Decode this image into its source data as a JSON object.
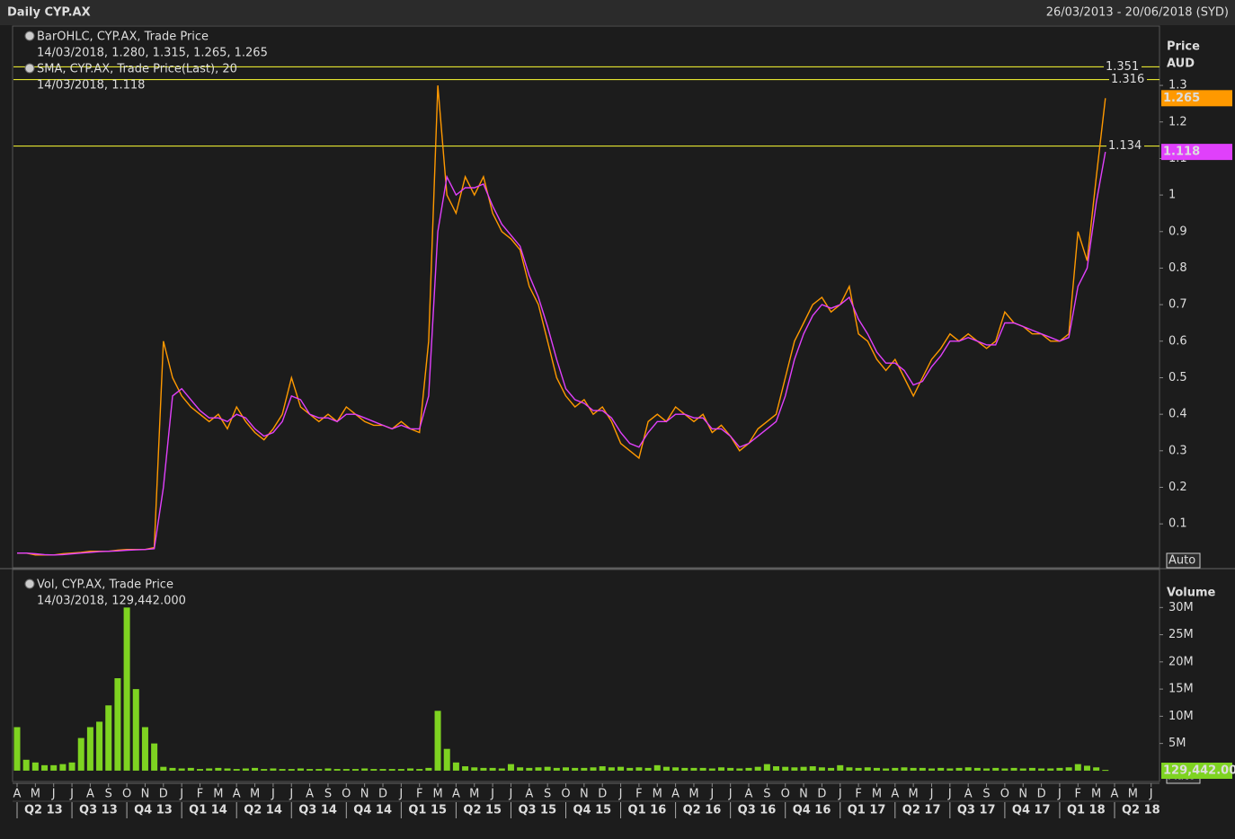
{
  "header": {
    "title": "Daily CYP.AX",
    "date_range": "26/03/2013 - 20/06/2018 (SYD)"
  },
  "x_axis": {
    "months": [
      "A",
      "M",
      "J",
      "J",
      "A",
      "S",
      "O",
      "N",
      "D",
      "J",
      "F",
      "M",
      "A",
      "M",
      "J",
      "J",
      "A",
      "S",
      "O",
      "N",
      "D",
      "J",
      "F",
      "M",
      "A",
      "M",
      "J",
      "J",
      "A",
      "S",
      "O",
      "N",
      "D",
      "J",
      "F",
      "M",
      "A",
      "M",
      "J",
      "J",
      "A",
      "S",
      "O",
      "N",
      "D",
      "J",
      "F",
      "M",
      "A",
      "M",
      "J",
      "J",
      "A",
      "S",
      "O",
      "N",
      "D",
      "J",
      "F",
      "M",
      "A",
      "M",
      "J"
    ],
    "quarters": [
      "Q2 13",
      "Q3 13",
      "Q4 13",
      "Q1 14",
      "Q2 14",
      "Q3 14",
      "Q4 14",
      "Q1 15",
      "Q2 15",
      "Q3 15",
      "Q4 15",
      "Q1 16",
      "Q2 16",
      "Q3 16",
      "Q4 16",
      "Q1 17",
      "Q2 17",
      "Q3 17",
      "Q4 17",
      "Q1 18",
      "Q2 18"
    ]
  },
  "chart_data": [
    {
      "type": "line",
      "axis_title": "Price",
      "axis_unit": "AUD",
      "autoscale": "Auto",
      "ylim": [
        -0.02,
        1.46
      ],
      "yticks": [
        0.1,
        0.2,
        0.3,
        0.4,
        0.5,
        0.6,
        0.7,
        0.8,
        0.9,
        1,
        1.1,
        1.2,
        1.3
      ],
      "levels": [
        1.351,
        1.316,
        1.134
      ],
      "level_color": "#ffff33",
      "series": [
        {
          "name": "BarOHLC, CYP.AX, Trade Price",
          "detail": "14/03/2018, 1.280, 1.315, 1.265, 1.265",
          "color": "#ff9900",
          "values": [
            0.02,
            0.02,
            0.015,
            0.015,
            0.015,
            0.018,
            0.02,
            0.022,
            0.025,
            0.025,
            0.025,
            0.028,
            0.03,
            0.03,
            0.03,
            0.035,
            0.6,
            0.5,
            0.45,
            0.42,
            0.4,
            0.38,
            0.4,
            0.36,
            0.42,
            0.38,
            0.35,
            0.33,
            0.36,
            0.4,
            0.5,
            0.42,
            0.4,
            0.38,
            0.4,
            0.38,
            0.42,
            0.4,
            0.38,
            0.37,
            0.37,
            0.36,
            0.38,
            0.36,
            0.35,
            0.6,
            1.3,
            1.0,
            0.95,
            1.05,
            1.0,
            1.05,
            0.95,
            0.9,
            0.88,
            0.85,
            0.75,
            0.7,
            0.6,
            0.5,
            0.45,
            0.42,
            0.44,
            0.4,
            0.42,
            0.38,
            0.32,
            0.3,
            0.28,
            0.38,
            0.4,
            0.38,
            0.42,
            0.4,
            0.38,
            0.4,
            0.35,
            0.37,
            0.34,
            0.3,
            0.32,
            0.36,
            0.38,
            0.4,
            0.5,
            0.6,
            0.65,
            0.7,
            0.72,
            0.68,
            0.7,
            0.75,
            0.62,
            0.6,
            0.55,
            0.52,
            0.55,
            0.5,
            0.45,
            0.5,
            0.55,
            0.58,
            0.62,
            0.6,
            0.62,
            0.6,
            0.58,
            0.6,
            0.68,
            0.65,
            0.64,
            0.62,
            0.62,
            0.6,
            0.6,
            0.62,
            0.9,
            0.82,
            1.05,
            1.265
          ]
        },
        {
          "name": "SMA, CYP.AX, Trade Price(Last),  20",
          "detail": "14/03/2018, 1.118",
          "color": "#e040fb",
          "values": [
            0.02,
            0.02,
            0.018,
            0.016,
            0.015,
            0.016,
            0.018,
            0.02,
            0.022,
            0.024,
            0.025,
            0.026,
            0.028,
            0.029,
            0.03,
            0.032,
            0.2,
            0.45,
            0.47,
            0.44,
            0.41,
            0.39,
            0.39,
            0.38,
            0.4,
            0.39,
            0.36,
            0.34,
            0.35,
            0.38,
            0.45,
            0.44,
            0.4,
            0.39,
            0.39,
            0.38,
            0.4,
            0.4,
            0.39,
            0.38,
            0.37,
            0.36,
            0.37,
            0.36,
            0.36,
            0.45,
            0.9,
            1.05,
            1.0,
            1.02,
            1.02,
            1.03,
            0.97,
            0.92,
            0.89,
            0.86,
            0.78,
            0.72,
            0.64,
            0.55,
            0.47,
            0.44,
            0.43,
            0.41,
            0.41,
            0.39,
            0.35,
            0.32,
            0.31,
            0.35,
            0.38,
            0.38,
            0.4,
            0.4,
            0.39,
            0.39,
            0.36,
            0.36,
            0.34,
            0.31,
            0.32,
            0.34,
            0.36,
            0.38,
            0.45,
            0.55,
            0.62,
            0.67,
            0.7,
            0.69,
            0.7,
            0.72,
            0.66,
            0.62,
            0.57,
            0.54,
            0.54,
            0.52,
            0.48,
            0.49,
            0.53,
            0.56,
            0.6,
            0.6,
            0.61,
            0.6,
            0.59,
            0.59,
            0.65,
            0.65,
            0.64,
            0.63,
            0.62,
            0.61,
            0.6,
            0.61,
            0.75,
            0.8,
            0.98,
            1.118
          ]
        }
      ]
    },
    {
      "type": "bar",
      "axis_title": "Volume",
      "autoscale": "Auto",
      "ylim": [
        -2000000,
        36000000
      ],
      "yticks": [
        {
          "value": 5000000,
          "label": "5M"
        },
        {
          "value": 10000000,
          "label": "10M"
        },
        {
          "value": 15000000,
          "label": "15M"
        },
        {
          "value": 20000000,
          "label": "20M"
        },
        {
          "value": 25000000,
          "label": "25M"
        },
        {
          "value": 30000000,
          "label": "30M"
        }
      ],
      "series": [
        {
          "name": "Vol, CYP.AX, Trade Price",
          "detail": "14/03/2018, 129,442.000",
          "color": "#7ed321",
          "last_label": "129,442.000",
          "values": [
            8000000,
            2000000,
            1500000,
            1000000,
            1000000,
            1200000,
            1500000,
            6000000,
            8000000,
            9000000,
            12000000,
            17000000,
            30000000,
            15000000,
            8000000,
            5000000,
            700000,
            500000,
            400000,
            500000,
            300000,
            400000,
            500000,
            400000,
            300000,
            400000,
            500000,
            300000,
            400000,
            300000,
            300000,
            400000,
            300000,
            300000,
            400000,
            300000,
            300000,
            300000,
            400000,
            300000,
            300000,
            300000,
            300000,
            400000,
            300000,
            500000,
            11000000,
            4000000,
            1500000,
            800000,
            600000,
            500000,
            500000,
            400000,
            1200000,
            600000,
            500000,
            600000,
            700000,
            500000,
            600000,
            500000,
            500000,
            600000,
            800000,
            600000,
            700000,
            500000,
            600000,
            500000,
            1000000,
            700000,
            600000,
            500000,
            500000,
            500000,
            400000,
            600000,
            500000,
            400000,
            500000,
            700000,
            1200000,
            800000,
            700000,
            600000,
            700000,
            800000,
            600000,
            500000,
            1000000,
            600000,
            500000,
            600000,
            500000,
            400000,
            500000,
            600000,
            500000,
            500000,
            400000,
            500000,
            400000,
            500000,
            600000,
            500000,
            400000,
            500000,
            400000,
            500000,
            400000,
            500000,
            400000,
            400000,
            500000,
            600000,
            1200000,
            900000,
            600000,
            129442
          ]
        }
      ]
    }
  ]
}
